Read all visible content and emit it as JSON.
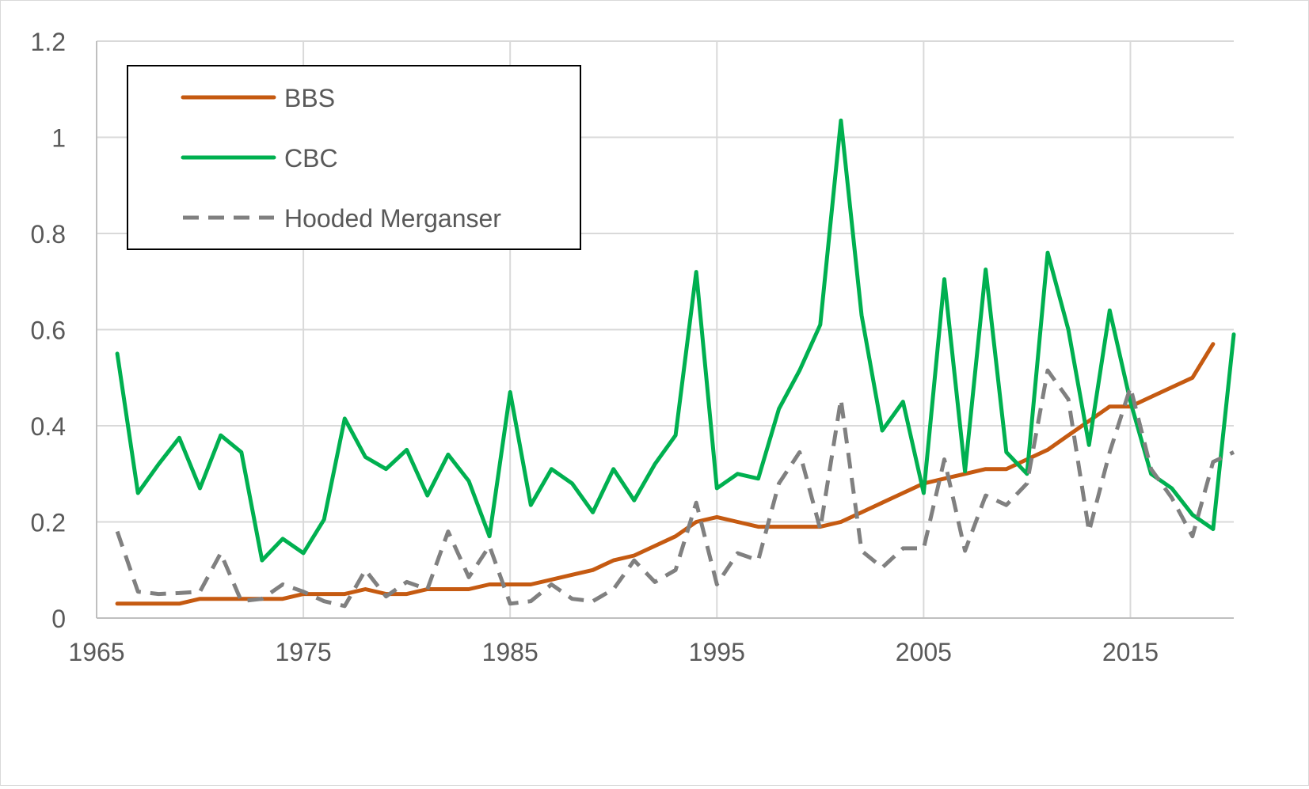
{
  "chart_data": {
    "type": "line",
    "title": "",
    "xlabel": "",
    "ylabel": "",
    "xlim": [
      1965,
      2020
    ],
    "ylim": [
      0,
      1.2
    ],
    "x_ticks": [
      "1965",
      "1975",
      "1985",
      "1995",
      "2005",
      "2015"
    ],
    "y_ticks": [
      "0",
      "0.2",
      "0.4",
      "0.6",
      "0.8",
      "1",
      "1.2"
    ],
    "grid": "vertical-and-horizontal",
    "legend_position": "top-left",
    "x": [
      1966,
      1967,
      1968,
      1969,
      1970,
      1971,
      1972,
      1973,
      1974,
      1975,
      1976,
      1977,
      1978,
      1979,
      1980,
      1981,
      1982,
      1983,
      1984,
      1985,
      1986,
      1987,
      1988,
      1989,
      1990,
      1991,
      1992,
      1993,
      1994,
      1995,
      1996,
      1997,
      1998,
      1999,
      2000,
      2001,
      2002,
      2003,
      2004,
      2005,
      2006,
      2007,
      2008,
      2009,
      2010,
      2011,
      2012,
      2013,
      2014,
      2015,
      2016,
      2017,
      2018,
      2019,
      2020
    ],
    "series": [
      {
        "name": "BBS",
        "color": "#c55a11",
        "dash": "solid",
        "values": [
          0.03,
          0.03,
          0.03,
          0.03,
          0.04,
          0.04,
          0.04,
          0.04,
          0.04,
          0.05,
          0.05,
          0.05,
          0.06,
          0.05,
          0.05,
          0.06,
          0.06,
          0.06,
          0.07,
          0.07,
          0.07,
          0.08,
          0.09,
          0.1,
          0.12,
          0.13,
          0.15,
          0.17,
          0.2,
          0.21,
          0.2,
          0.19,
          0.19,
          0.19,
          0.19,
          0.2,
          0.22,
          0.24,
          0.26,
          0.28,
          0.29,
          0.3,
          0.31,
          0.31,
          0.33,
          0.35,
          0.38,
          0.41,
          0.44,
          0.44,
          0.46,
          0.48,
          0.5,
          0.57,
          null
        ]
      },
      {
        "name": "CBC",
        "color": "#00b050",
        "dash": "solid",
        "values": [
          0.55,
          0.26,
          0.32,
          0.375,
          0.27,
          0.38,
          0.345,
          0.12,
          0.165,
          0.135,
          0.205,
          0.415,
          0.335,
          0.31,
          0.35,
          0.255,
          0.34,
          0.285,
          0.17,
          0.47,
          0.235,
          0.31,
          0.28,
          0.22,
          0.31,
          0.245,
          0.32,
          0.38,
          0.72,
          0.27,
          0.3,
          0.29,
          0.435,
          0.515,
          0.61,
          1.035,
          0.63,
          0.39,
          0.45,
          0.26,
          0.705,
          0.305,
          0.725,
          0.345,
          0.3,
          0.76,
          0.6,
          0.36,
          0.64,
          0.45,
          0.3,
          0.27,
          0.215,
          0.185,
          0.59
        ]
      },
      {
        "name": "Hooded Merganser",
        "color": "#808080",
        "dash": "dashed",
        "values": [
          0.18,
          0.055,
          0.05,
          0.052,
          0.055,
          0.135,
          0.035,
          0.04,
          0.07,
          0.055,
          0.035,
          0.025,
          0.1,
          0.045,
          0.075,
          0.06,
          0.18,
          0.085,
          0.15,
          0.03,
          0.035,
          0.07,
          0.04,
          0.035,
          0.06,
          0.12,
          0.075,
          0.1,
          0.24,
          0.07,
          0.135,
          0.12,
          0.28,
          0.345,
          0.185,
          0.455,
          0.14,
          0.105,
          0.145,
          0.145,
          0.33,
          0.14,
          0.255,
          0.235,
          0.28,
          0.515,
          0.455,
          0.18,
          0.345,
          0.48,
          0.31,
          0.25,
          0.17,
          0.325,
          0.345
        ]
      }
    ]
  }
}
